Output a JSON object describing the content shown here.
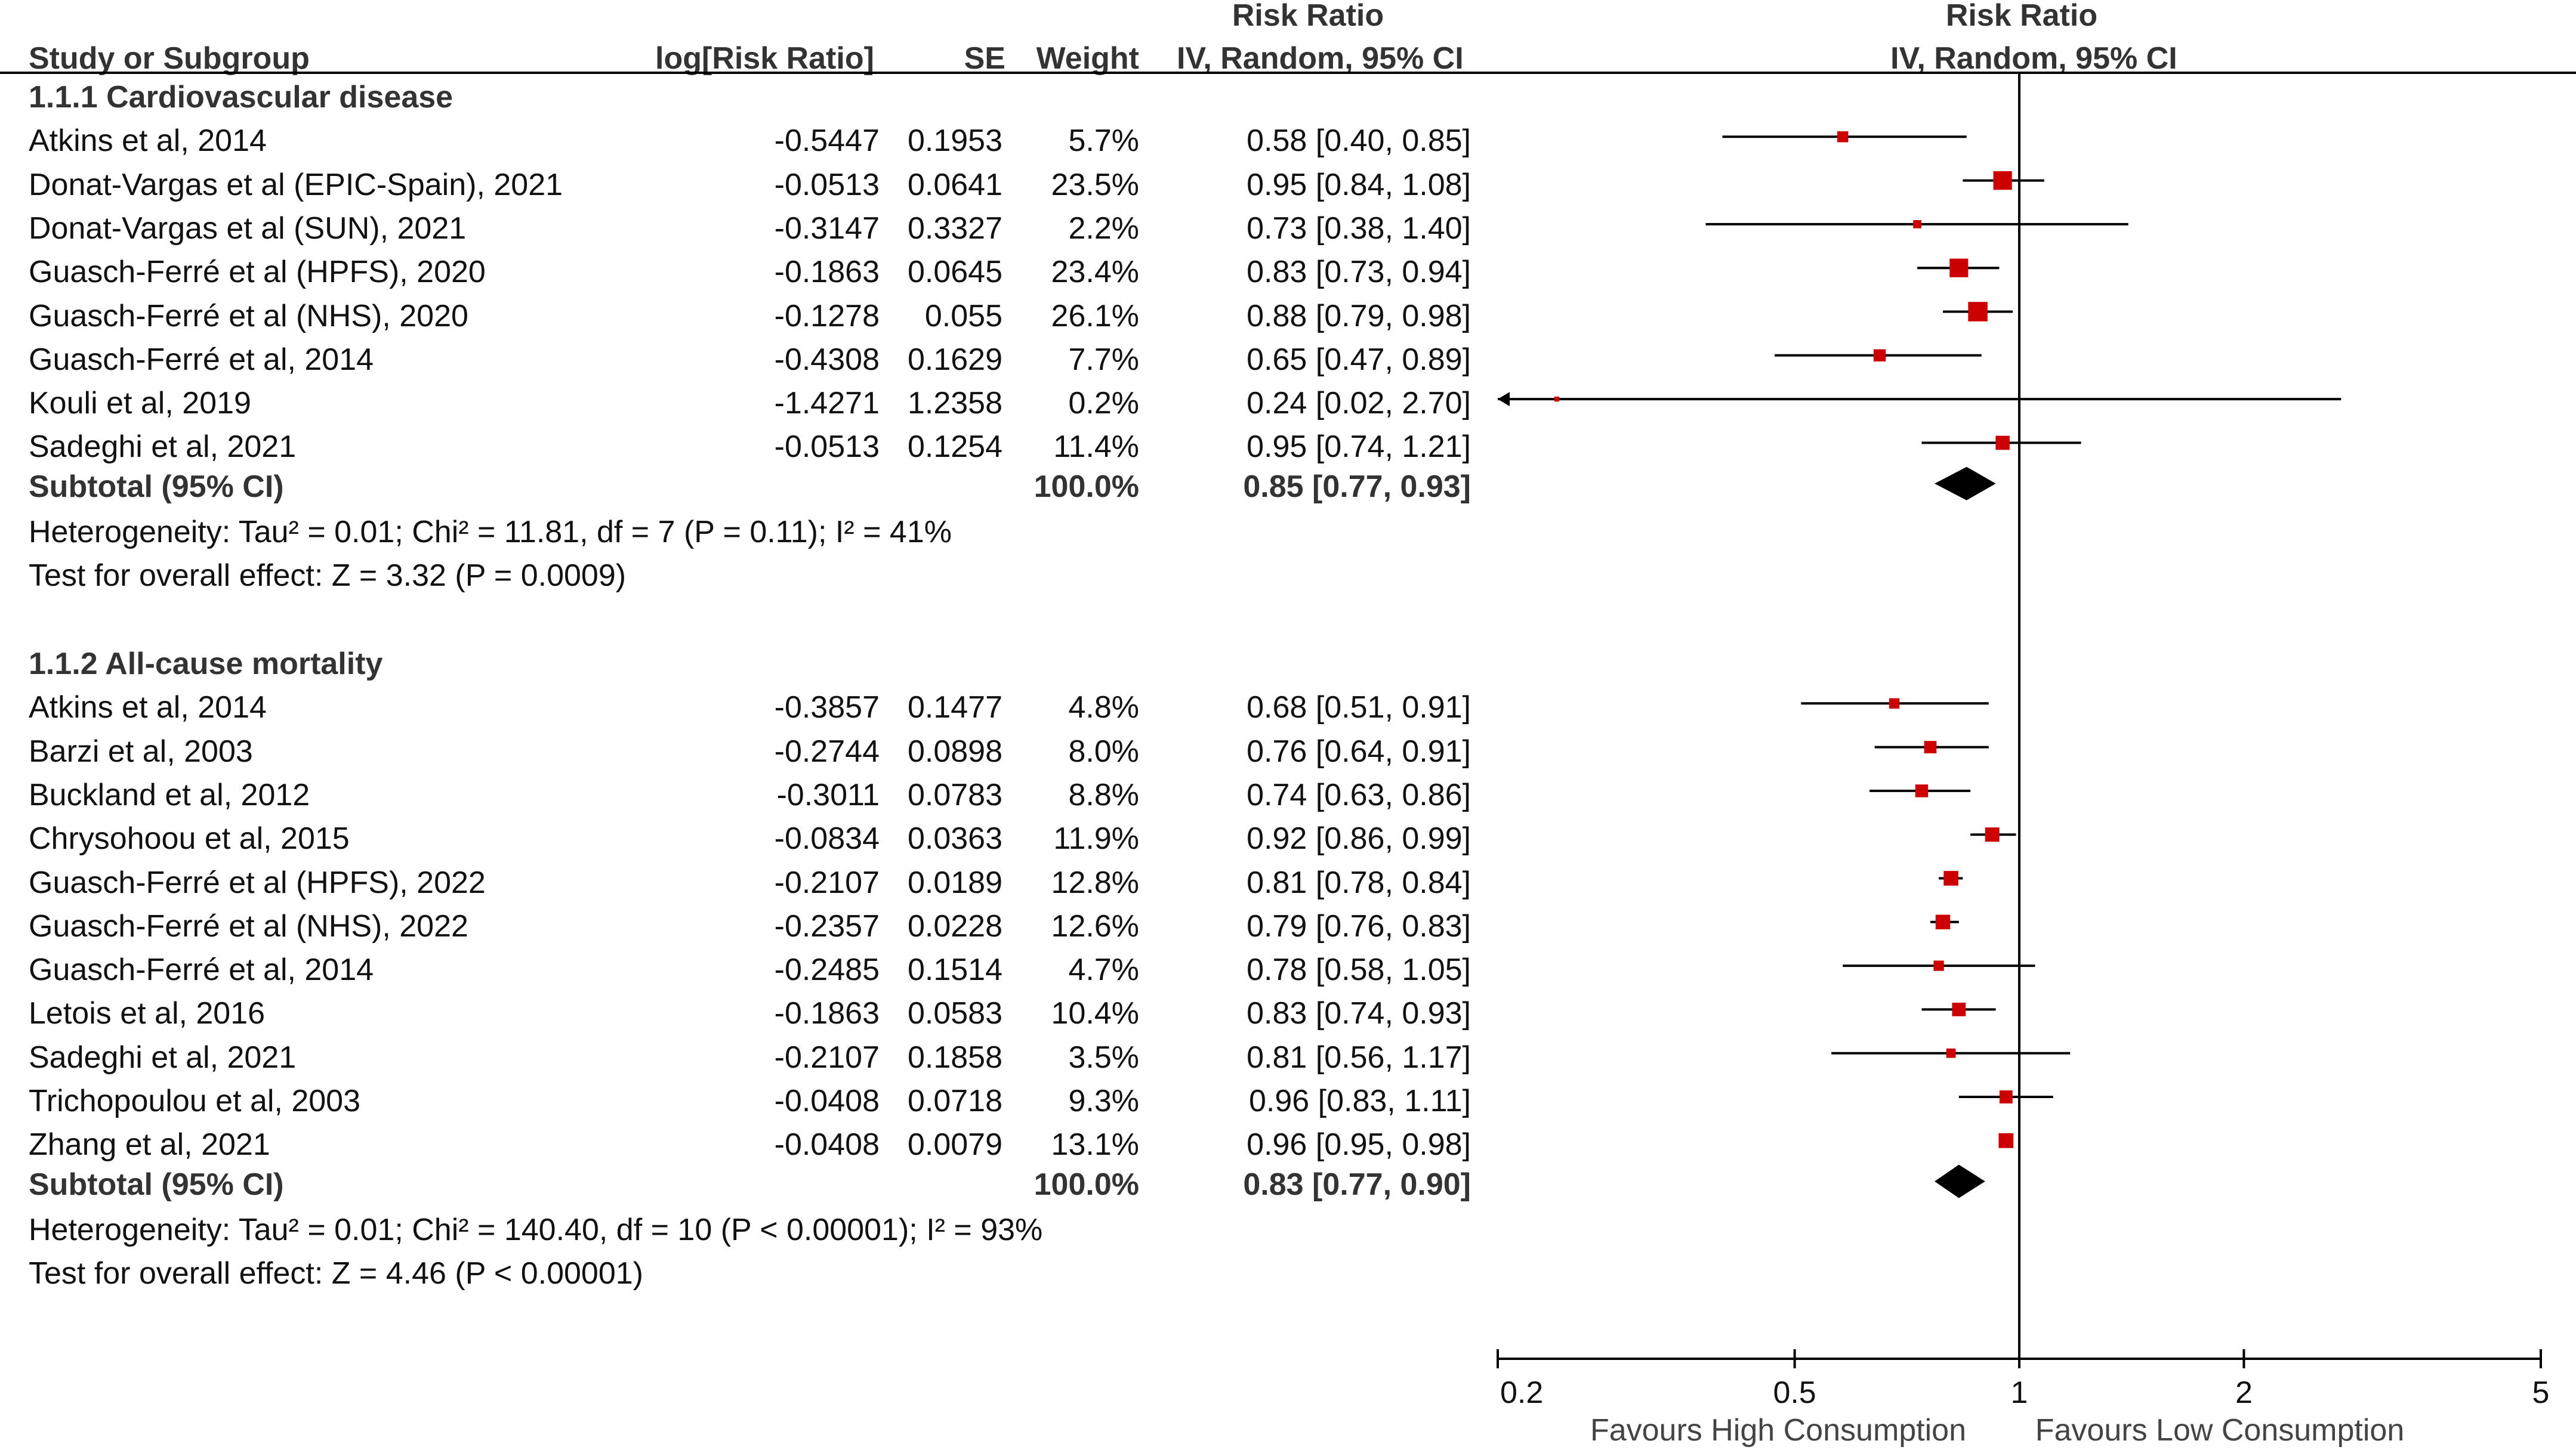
{
  "chart_data": {
    "type": "forest",
    "scale": "log",
    "xlim": [
      0.2,
      5
    ],
    "ticks": [
      0.2,
      0.5,
      1,
      2,
      5
    ],
    "tick_labels": [
      "0.2",
      "0.5",
      "1",
      "2",
      "5"
    ],
    "favours_left": "Favours High Consumption",
    "favours_right": "Favours Low Consumption",
    "colors": {
      "study": "#cc0000",
      "diamond": "#000000",
      "line": "#000000"
    },
    "headers": {
      "study": "Study or Subgroup",
      "logrr": "log[Risk Ratio]",
      "se": "SE",
      "weight": "Weight",
      "rr_title": "Risk Ratio",
      "rr_method": "IV, Random, 95% CI",
      "plot_title": "Risk Ratio",
      "plot_method": "IV, Random, 95% CI"
    },
    "subgroups": [
      {
        "title": "1.1.1 Cardiovascular disease",
        "studies": [
          {
            "study": "Atkins et al, 2014",
            "logrr": "-0.5447",
            "se": "0.1953",
            "weight": "5.7%",
            "ci_text": "0.58 [0.40, 0.85]",
            "rr": 0.58,
            "lo": 0.4,
            "hi": 0.85,
            "w": 5.7
          },
          {
            "study": "Donat-Vargas et al (EPIC-Spain), 2021",
            "logrr": "-0.0513",
            "se": "0.0641",
            "weight": "23.5%",
            "ci_text": "0.95 [0.84, 1.08]",
            "rr": 0.95,
            "lo": 0.84,
            "hi": 1.08,
            "w": 23.5
          },
          {
            "study": "Donat-Vargas et al (SUN), 2021",
            "logrr": "-0.3147",
            "se": "0.3327",
            "weight": "2.2%",
            "ci_text": "0.73 [0.38, 1.40]",
            "rr": 0.73,
            "lo": 0.38,
            "hi": 1.4,
            "w": 2.2
          },
          {
            "study": "Guasch-Ferré et al (HPFS), 2020",
            "logrr": "-0.1863",
            "se": "0.0645",
            "weight": "23.4%",
            "ci_text": "0.83 [0.73, 0.94]",
            "rr": 0.83,
            "lo": 0.73,
            "hi": 0.94,
            "w": 23.4
          },
          {
            "study": "Guasch-Ferré et al (NHS), 2020",
            "logrr": "-0.1278",
            "se": "0.055",
            "weight": "26.1%",
            "ci_text": "0.88 [0.79, 0.98]",
            "rr": 0.88,
            "lo": 0.79,
            "hi": 0.98,
            "w": 26.1
          },
          {
            "study": "Guasch-Ferré et al, 2014",
            "logrr": "-0.4308",
            "se": "0.1629",
            "weight": "7.7%",
            "ci_text": "0.65 [0.47, 0.89]",
            "rr": 0.65,
            "lo": 0.47,
            "hi": 0.89,
            "w": 7.7
          },
          {
            "study": "Kouli et al, 2019",
            "logrr": "-1.4271",
            "se": "1.2358",
            "weight": "0.2%",
            "ci_text": "0.24 [0.02, 2.70]",
            "rr": 0.24,
            "lo": 0.02,
            "hi": 2.7,
            "w": 0.2
          },
          {
            "study": "Sadeghi et al, 2021",
            "logrr": "-0.0513",
            "se": "0.1254",
            "weight": "11.4%",
            "ci_text": "0.95 [0.74, 1.21]",
            "rr": 0.95,
            "lo": 0.74,
            "hi": 1.21,
            "w": 11.4
          }
        ],
        "subtotal": {
          "label": "Subtotal (95% CI)",
          "weight": "100.0%",
          "ci_text": "0.85 [0.77, 0.93]",
          "rr": 0.85,
          "lo": 0.77,
          "hi": 0.93
        },
        "heterogeneity": "Heterogeneity: Tau² = 0.01; Chi² = 11.81, df = 7 (P = 0.11); I² = 41%",
        "overall": "Test for overall effect: Z = 3.32 (P = 0.0009)"
      },
      {
        "title": "1.1.2 All-cause mortality",
        "studies": [
          {
            "study": "Atkins et al, 2014",
            "logrr": "-0.3857",
            "se": "0.1477",
            "weight": "4.8%",
            "ci_text": "0.68 [0.51, 0.91]",
            "rr": 0.68,
            "lo": 0.51,
            "hi": 0.91,
            "w": 4.8
          },
          {
            "study": "Barzi et al, 2003",
            "logrr": "-0.2744",
            "se": "0.0898",
            "weight": "8.0%",
            "ci_text": "0.76 [0.64, 0.91]",
            "rr": 0.76,
            "lo": 0.64,
            "hi": 0.91,
            "w": 8.0
          },
          {
            "study": "Buckland et al, 2012",
            "logrr": "-0.3011",
            "se": "0.0783",
            "weight": "8.8%",
            "ci_text": "0.74 [0.63, 0.86]",
            "rr": 0.74,
            "lo": 0.63,
            "hi": 0.86,
            "w": 8.8
          },
          {
            "study": "Chrysohoou et al, 2015",
            "logrr": "-0.0834",
            "se": "0.0363",
            "weight": "11.9%",
            "ci_text": "0.92 [0.86, 0.99]",
            "rr": 0.92,
            "lo": 0.86,
            "hi": 0.99,
            "w": 11.9
          },
          {
            "study": "Guasch-Ferré et al (HPFS), 2022",
            "logrr": "-0.2107",
            "se": "0.0189",
            "weight": "12.8%",
            "ci_text": "0.81 [0.78, 0.84]",
            "rr": 0.81,
            "lo": 0.78,
            "hi": 0.84,
            "w": 12.8
          },
          {
            "study": "Guasch-Ferré et al (NHS), 2022",
            "logrr": "-0.2357",
            "se": "0.0228",
            "weight": "12.6%",
            "ci_text": "0.79 [0.76, 0.83]",
            "rr": 0.79,
            "lo": 0.76,
            "hi": 0.83,
            "w": 12.6
          },
          {
            "study": "Guasch-Ferré et al, 2014",
            "logrr": "-0.2485",
            "se": "0.1514",
            "weight": "4.7%",
            "ci_text": "0.78 [0.58, 1.05]",
            "rr": 0.78,
            "lo": 0.58,
            "hi": 1.05,
            "w": 4.7
          },
          {
            "study": "Letois et al, 2016",
            "logrr": "-0.1863",
            "se": "0.0583",
            "weight": "10.4%",
            "ci_text": "0.83 [0.74, 0.93]",
            "rr": 0.83,
            "lo": 0.74,
            "hi": 0.93,
            "w": 10.4
          },
          {
            "study": "Sadeghi et al, 2021",
            "logrr": "-0.2107",
            "se": "0.1858",
            "weight": "3.5%",
            "ci_text": "0.81 [0.56, 1.17]",
            "rr": 0.81,
            "lo": 0.56,
            "hi": 1.17,
            "w": 3.5
          },
          {
            "study": "Trichopoulou et al, 2003",
            "logrr": "-0.0408",
            "se": "0.0718",
            "weight": "9.3%",
            "ci_text": "0.96 [0.83, 1.11]",
            "rr": 0.96,
            "lo": 0.83,
            "hi": 1.11,
            "w": 9.3
          },
          {
            "study": "Zhang et al, 2021",
            "logrr": "-0.0408",
            "se": "0.0079",
            "weight": "13.1%",
            "ci_text": "0.96 [0.95, 0.98]",
            "rr": 0.96,
            "lo": 0.95,
            "hi": 0.98,
            "w": 13.1
          }
        ],
        "subtotal": {
          "label": "Subtotal (95% CI)",
          "weight": "100.0%",
          "ci_text": "0.83 [0.77, 0.90]",
          "rr": 0.83,
          "lo": 0.77,
          "hi": 0.9
        },
        "heterogeneity": "Heterogeneity: Tau² = 0.01; Chi² = 140.40, df = 10 (P < 0.00001); I² = 93%",
        "overall": "Test for overall effect: Z = 4.46 (P < 0.00001)"
      }
    ]
  }
}
